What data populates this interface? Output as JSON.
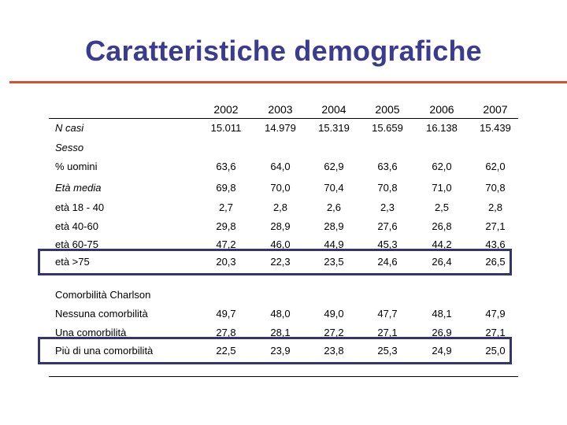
{
  "title": "Caratteristiche demografiche",
  "years": [
    "2002",
    "2003",
    "2004",
    "2005",
    "2006",
    "2007"
  ],
  "n_casi": {
    "label": "N casi",
    "values": [
      "15.011",
      "14.979",
      "15.319",
      "15.659",
      "16.138",
      "15.439"
    ]
  },
  "sesso": {
    "label": "Sesso"
  },
  "uomini": {
    "label": "% uomini",
    "values": [
      "63,6",
      "64,0",
      "62,9",
      "63,6",
      "62,0",
      "62,0"
    ]
  },
  "eta_media": {
    "label": "Età media",
    "values": [
      "69,8",
      "70,0",
      "70,4",
      "70,8",
      "71,0",
      "70,8"
    ]
  },
  "eta_18_40": {
    "label": "età 18 - 40",
    "values": [
      "2,7",
      "2,8",
      "2,6",
      "2,3",
      "2,5",
      "2,8"
    ]
  },
  "eta_40_60": {
    "label": "età 40-60",
    "values": [
      "29,8",
      "28,9",
      "28,9",
      "27,6",
      "26,8",
      "27,1"
    ]
  },
  "eta_60_75": {
    "label": "età 60-75",
    "values": [
      "47,2",
      "46,0",
      "44,9",
      "45,3",
      "44,2",
      "43,6"
    ]
  },
  "eta_75": {
    "label": "età >75",
    "values": [
      "20,3",
      "22,3",
      "23,5",
      "24,6",
      "26,4",
      "26,5"
    ]
  },
  "comorbilita": {
    "label": "Comorbilità Charlson"
  },
  "nessuna": {
    "label": "Nessuna comorbilità",
    "values": [
      "49,7",
      "48,0",
      "49,0",
      "47,7",
      "48,1",
      "47,9"
    ]
  },
  "una": {
    "label": "Una comorbilità",
    "values": [
      "27,8",
      "28,1",
      "27,2",
      "27,1",
      "26,9",
      "27,1"
    ]
  },
  "piu": {
    "label": "Più di una comorbilità",
    "values": [
      "22,5",
      "23,9",
      "23,8",
      "25,3",
      "24,9",
      "25,0"
    ]
  }
}
